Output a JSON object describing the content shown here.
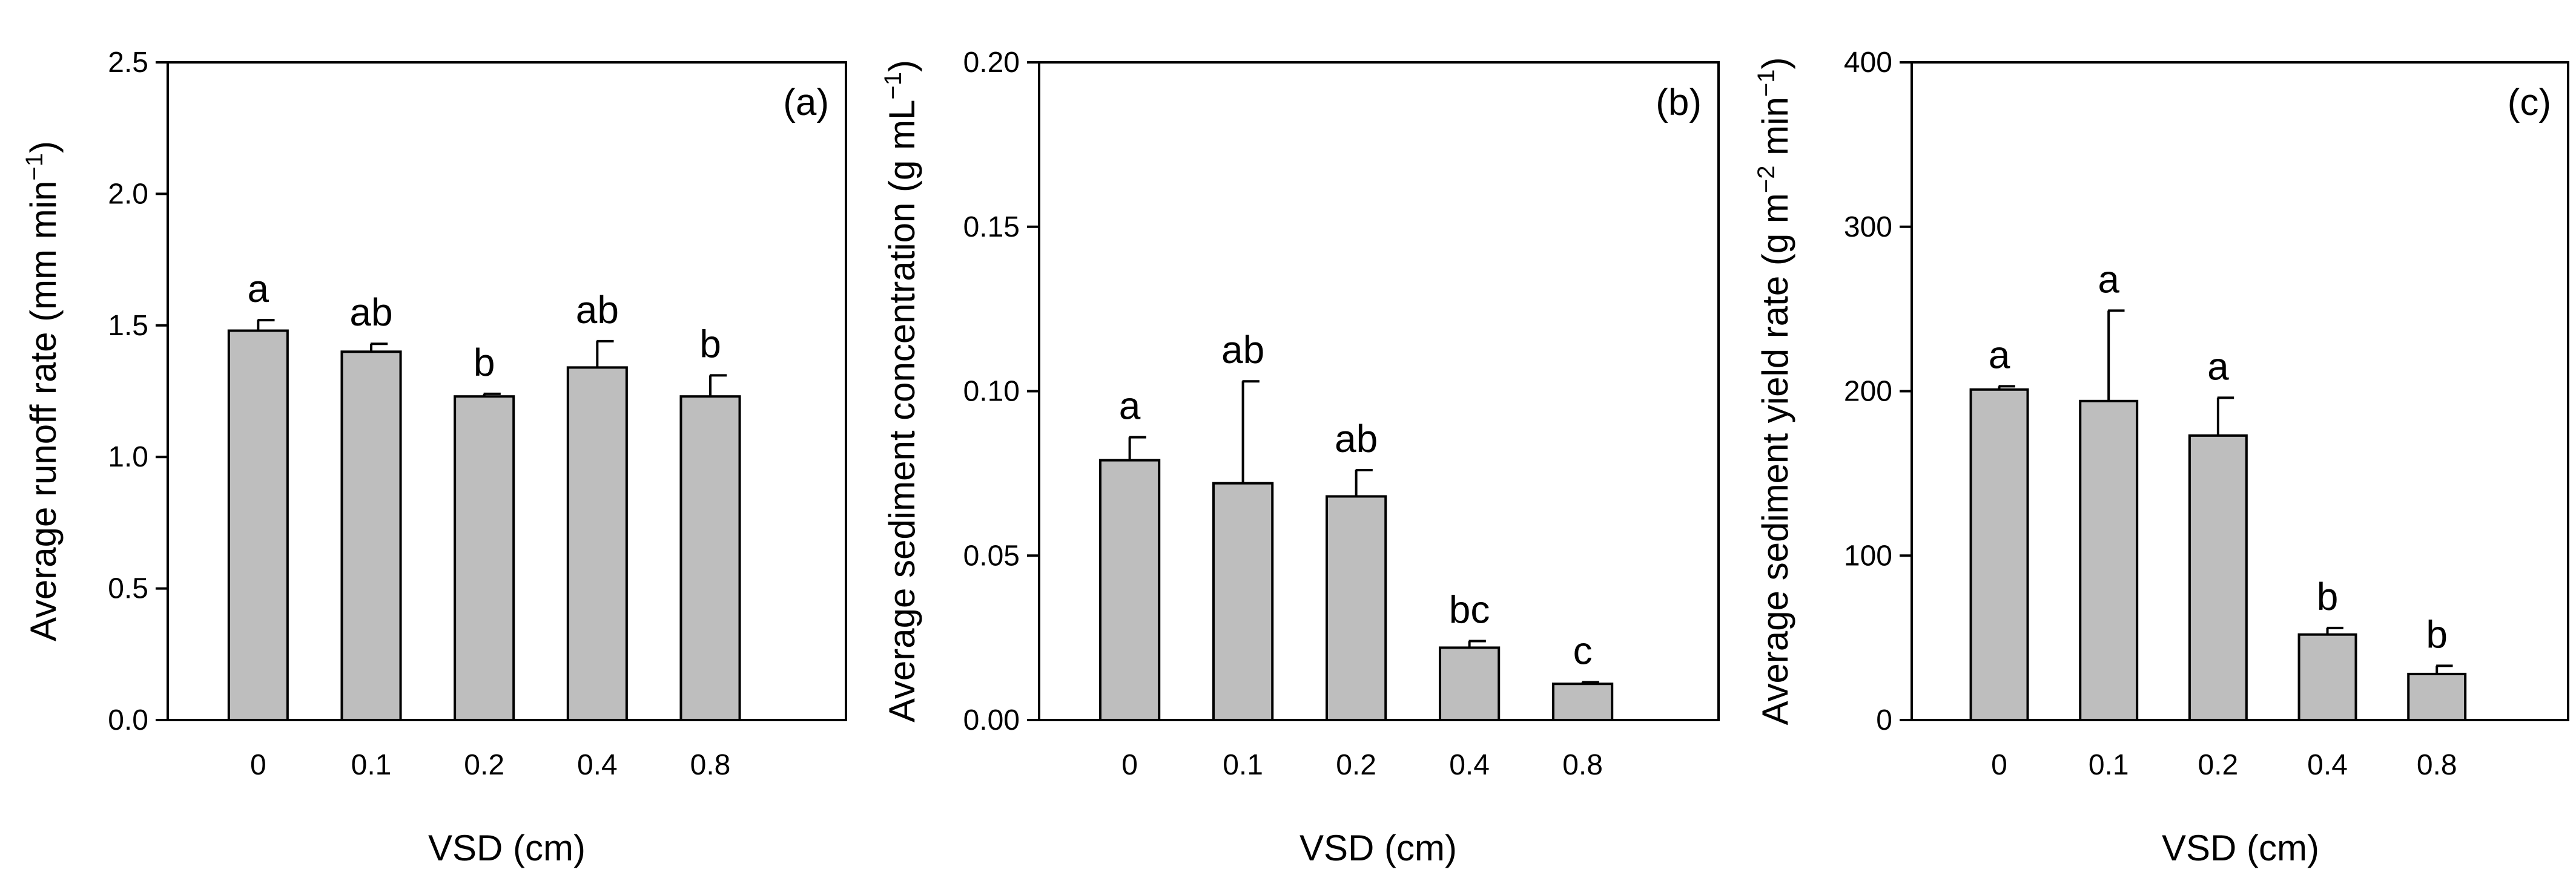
{
  "chart_data": [
    {
      "type": "bar",
      "panel_label": "(a)",
      "categories": [
        "0",
        "0.1",
        "0.2",
        "0.4",
        "0.8"
      ],
      "values": [
        1.48,
        1.4,
        1.23,
        1.34,
        1.23
      ],
      "errors": [
        0.04,
        0.03,
        0.01,
        0.1,
        0.08
      ],
      "significance": [
        "a",
        "ab",
        "b",
        "ab",
        "b"
      ],
      "xlabel": "VSD (cm)",
      "ylabel": {
        "base": "Average runoff rate (mm min",
        "sup": "−1",
        "close": ")"
      },
      "ylim": [
        0,
        2.5
      ],
      "yticks": [
        0.0,
        0.5,
        1.0,
        1.5,
        2.0,
        2.5
      ],
      "ytick_labels": [
        "0.0",
        "0.5",
        "1.0",
        "1.5",
        "2.0",
        "2.5"
      ]
    },
    {
      "type": "bar",
      "panel_label": "(b)",
      "categories": [
        "0",
        "0.1",
        "0.2",
        "0.4",
        "0.8"
      ],
      "values": [
        0.079,
        0.072,
        0.068,
        0.022,
        0.011
      ],
      "errors": [
        0.007,
        0.031,
        0.008,
        0.002,
        0.0005
      ],
      "significance": [
        "a",
        "ab",
        "ab",
        "bc",
        "c"
      ],
      "xlabel": "VSD (cm)",
      "ylabel": {
        "base": "Average sediment concentration (g mL",
        "sup": "−1",
        "close": ")"
      },
      "ylim": [
        0,
        0.2
      ],
      "yticks": [
        0.0,
        0.05,
        0.1,
        0.15,
        0.2
      ],
      "ytick_labels": [
        "0.00",
        "0.05",
        "0.10",
        "0.15",
        "0.20"
      ]
    },
    {
      "type": "bar",
      "panel_label": "(c)",
      "categories": [
        "0",
        "0.1",
        "0.2",
        "0.4",
        "0.8"
      ],
      "values": [
        201,
        194,
        173,
        52,
        28
      ],
      "errors": [
        2,
        55,
        23,
        4,
        5
      ],
      "significance": [
        "a",
        "a",
        "a",
        "b",
        "b"
      ],
      "xlabel": "VSD (cm)",
      "ylabel": {
        "base": "Average sediment yield rate (g m",
        "sup": "−2",
        "mid": " min",
        "sup2": "−1",
        "close": ")"
      },
      "ylim": [
        0,
        400
      ],
      "yticks": [
        0,
        100,
        200,
        300,
        400
      ],
      "ytick_labels": [
        "0",
        "100",
        "200",
        "300",
        "400"
      ]
    }
  ]
}
